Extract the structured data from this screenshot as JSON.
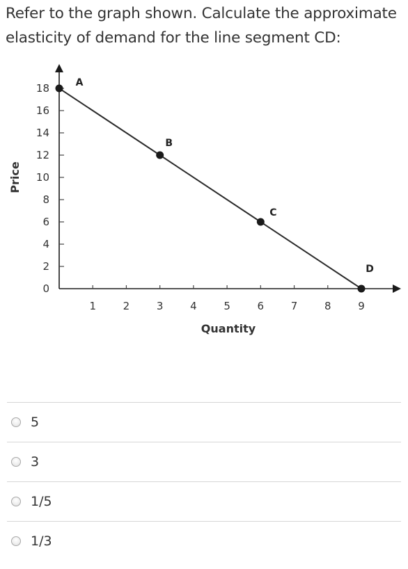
{
  "question": {
    "line1": "Refer to the graph shown. Calculate the approximate",
    "line2": "elasticity of demand for the line segment CD:"
  },
  "chart_data": {
    "type": "line",
    "xlabel": "Quantity",
    "ylabel": "Price",
    "xlim": [
      0,
      9
    ],
    "ylim": [
      0,
      18
    ],
    "x_ticks": [
      "1",
      "2",
      "3",
      "4",
      "5",
      "6",
      "7",
      "8",
      "9"
    ],
    "y_ticks": [
      "0",
      "2",
      "4",
      "6",
      "8",
      "10",
      "12",
      "14",
      "16",
      "18"
    ],
    "series": [
      {
        "x": [
          0,
          3,
          6,
          9
        ],
        "y": [
          18,
          12,
          6,
          0
        ]
      }
    ],
    "points": [
      {
        "label": "A",
        "x": 0,
        "y": 18
      },
      {
        "label": "B",
        "x": 3,
        "y": 12
      },
      {
        "label": "C",
        "x": 6,
        "y": 6
      },
      {
        "label": "D",
        "x": 9,
        "y": 0
      }
    ],
    "grid": false,
    "colors": {
      "line": "#2b2b2b",
      "point": "#1a1a1a",
      "axis": "#1a1a1a"
    }
  },
  "answers": [
    {
      "label": "5"
    },
    {
      "label": "3"
    },
    {
      "label": "1/5"
    },
    {
      "label": "1/3"
    }
  ]
}
